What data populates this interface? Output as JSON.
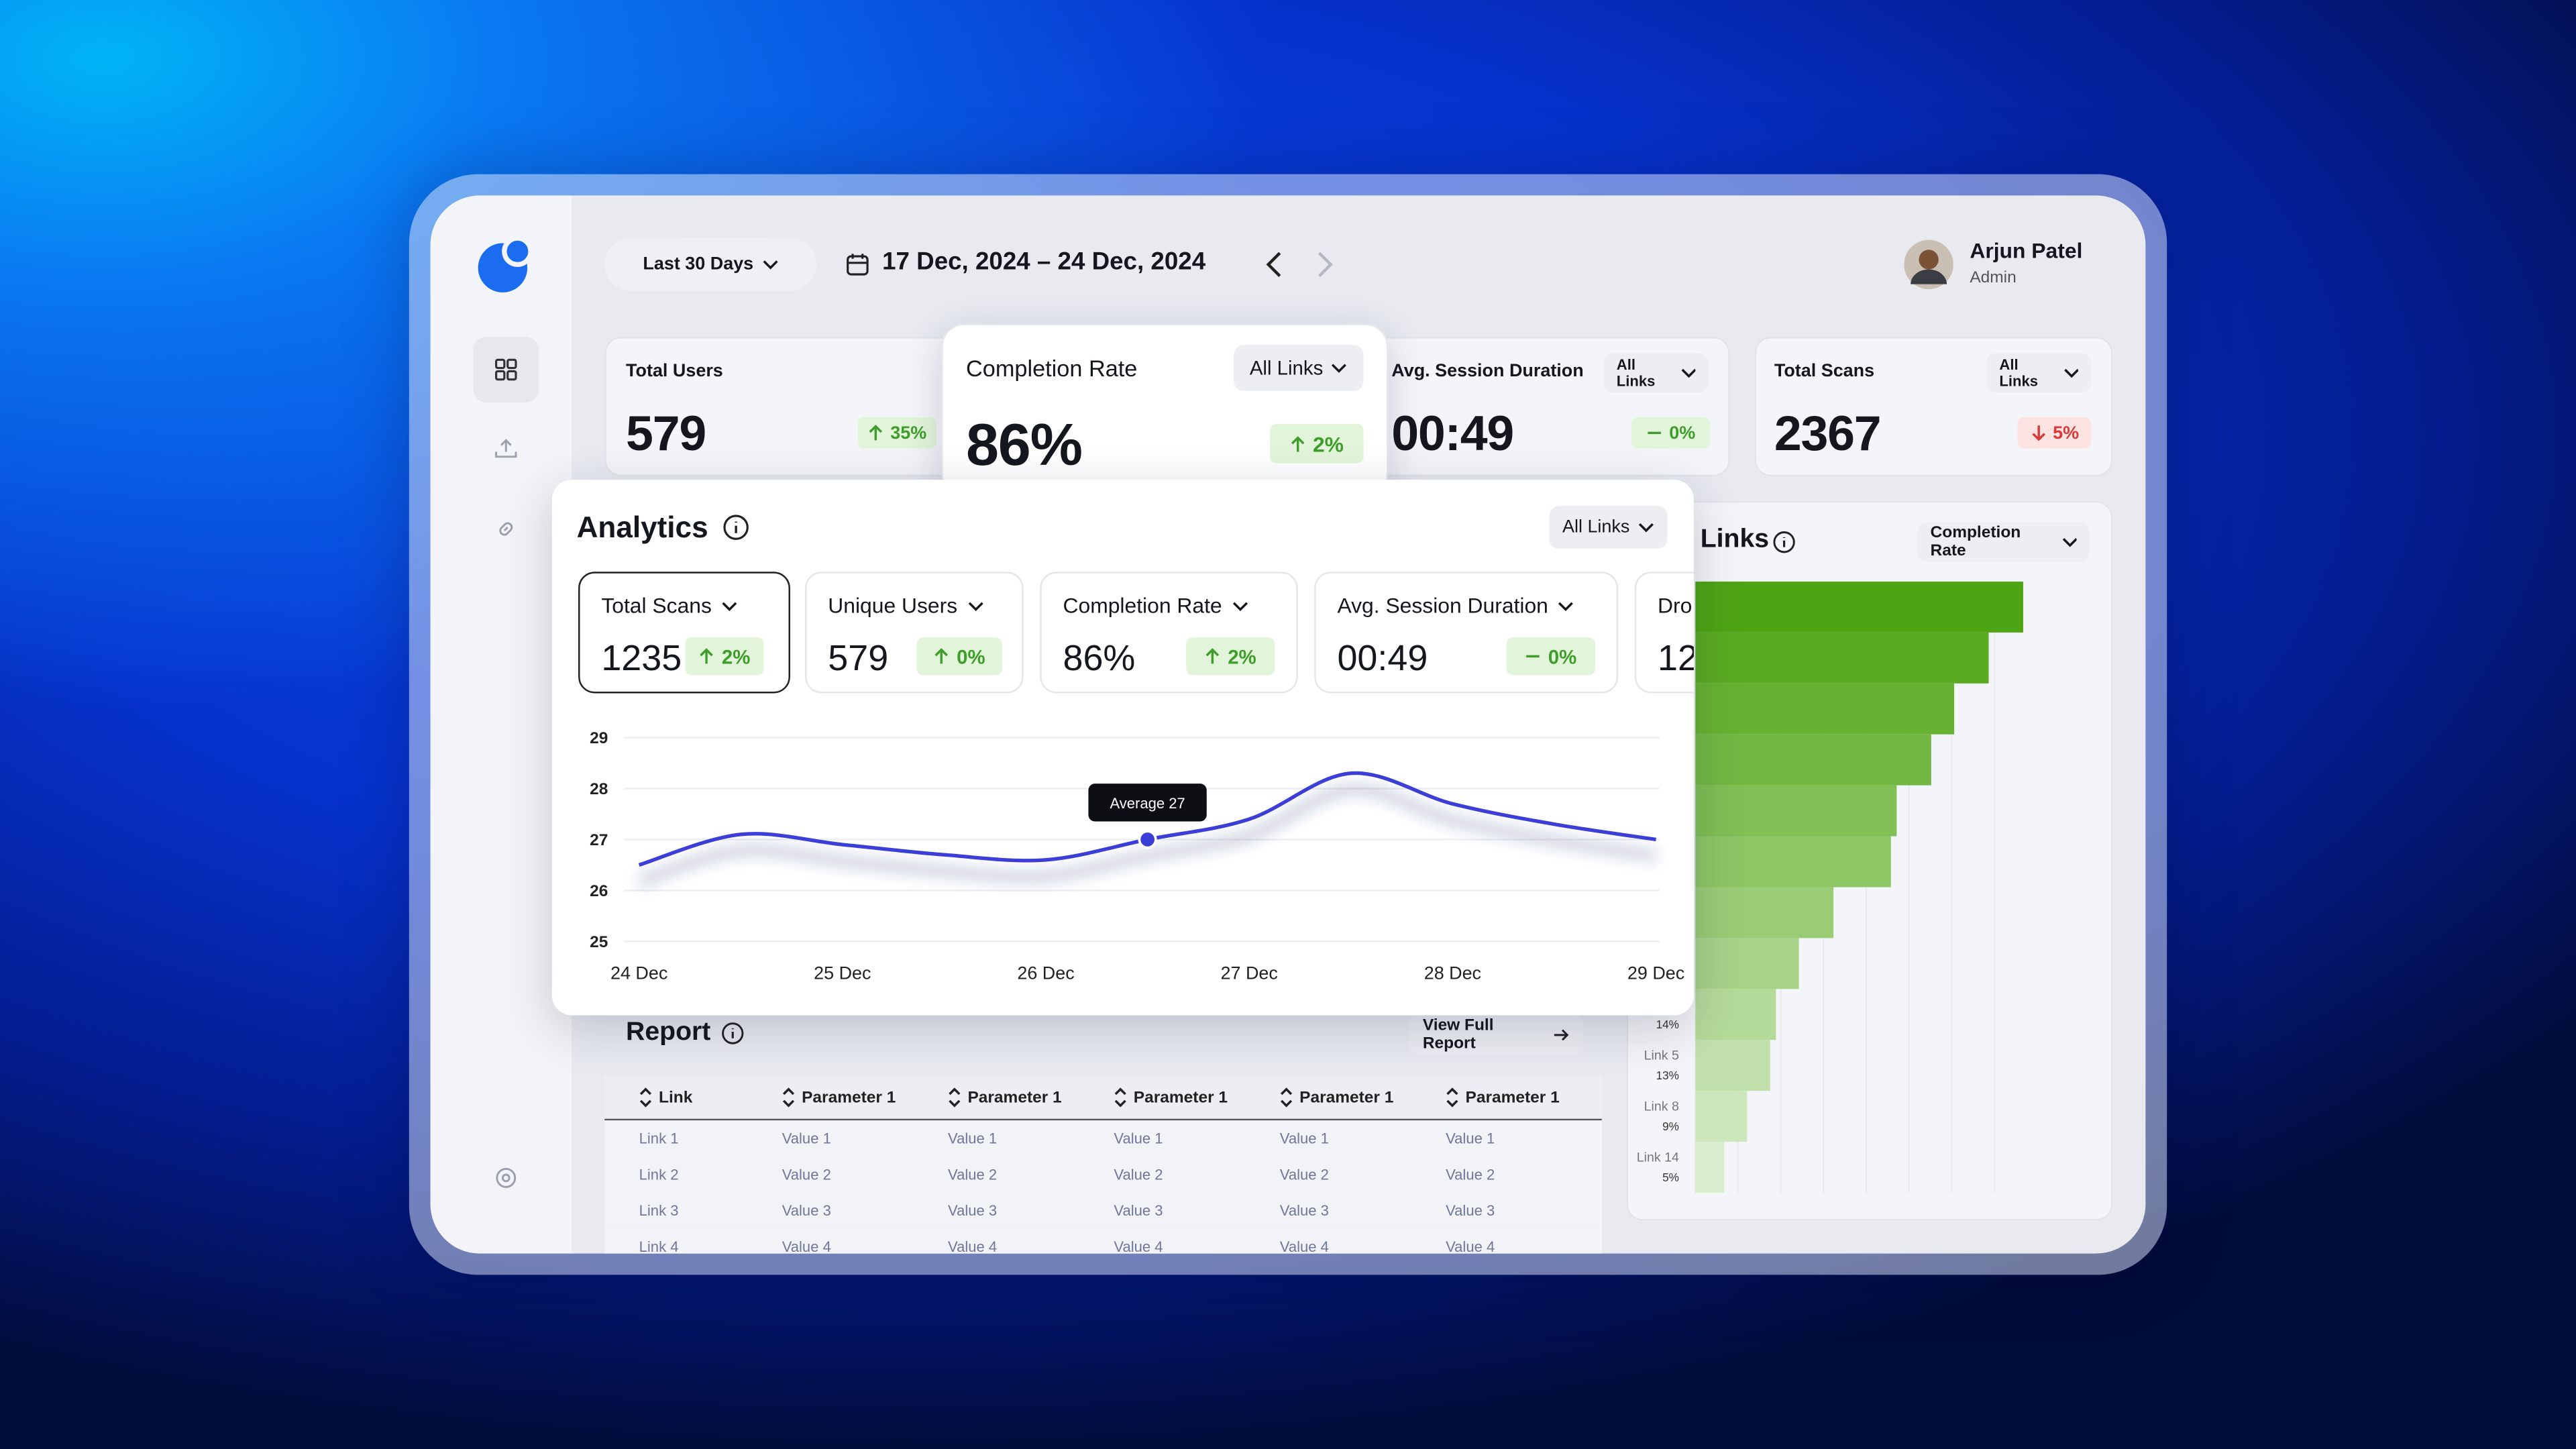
{
  "header": {
    "range": "Last 30 Days",
    "date_range": "17 Dec, 2024 – 24 Dec, 2024",
    "user": {
      "name": "Arjun Patel",
      "role": "Admin"
    }
  },
  "kpis": [
    {
      "title": "Total Users",
      "value": "579",
      "change": "35%",
      "trend": "up"
    },
    {
      "title": "Completion Rate",
      "filter": "All Links",
      "value": "86%",
      "change": "2%",
      "trend": "up"
    },
    {
      "title": "Avg. Session Duration",
      "filter": "All Links",
      "value": "00:49",
      "change": "0%",
      "trend": "flat"
    },
    {
      "title": "Total Scans",
      "filter": "All Links",
      "value": "2367",
      "change": "5%",
      "trend": "down"
    }
  ],
  "analytics": {
    "title": "Analytics",
    "filter": "All Links",
    "metrics": [
      {
        "title": "Total Scans",
        "value": "1235",
        "change": "2%",
        "trend": "up"
      },
      {
        "title": "Unique Users",
        "value": "579",
        "change": "0%",
        "trend": "up"
      },
      {
        "title": "Completion Rate",
        "value": "86%",
        "change": "2%",
        "trend": "up"
      },
      {
        "title": "Avg. Session Duration",
        "value": "00:49",
        "change": "0%",
        "trend": "flat"
      },
      {
        "title": "Dro",
        "value": "12"
      }
    ]
  },
  "links_panel": {
    "filter": "Completion Rate"
  },
  "chart_data": [
    {
      "type": "line",
      "categories": [
        "24 Dec",
        null,
        "25 Dec",
        null,
        "26 Dec",
        null,
        "27 Dec",
        null,
        "28 Dec",
        null,
        "29 Dec"
      ],
      "values": [
        26.5,
        27.1,
        26.9,
        26.7,
        26.6,
        27,
        27.4,
        28.3,
        27.7,
        27.3,
        27
      ],
      "color": "#3b3fd8",
      "ylim": [
        25,
        29
      ],
      "yticks": [
        25,
        26,
        27,
        28,
        29
      ],
      "grid": true,
      "annotations": [
        "Average 27"
      ]
    },
    {
      "type": "bar",
      "orientation": "horizontal",
      "title": "Links",
      "categories": [
        null,
        null,
        null,
        null,
        null,
        null,
        null,
        null,
        null,
        "Link 5",
        "Link 8",
        "Link 14"
      ],
      "values": [
        57,
        51,
        45,
        41,
        35,
        34,
        24,
        18,
        14,
        13,
        9,
        5
      ],
      "value_labels": [
        null,
        null,
        null,
        null,
        null,
        null,
        null,
        null,
        "14%",
        "13%",
        "9%",
        "5%"
      ],
      "xlim": [
        0,
        60
      ],
      "colors": [
        "#4ea514",
        "#5aab22",
        "#67b232",
        "#73b843",
        "#80bf54",
        "#8dc665",
        "#9acc76",
        "#a7d388",
        "#b4da99",
        "#c1e0ab",
        "#cde6bc",
        "#daedce"
      ]
    }
  ],
  "report": {
    "title": "Report",
    "link": "View Full Report",
    "columns": [
      "Link",
      "Parameter 1",
      "Parameter 1",
      "Parameter 1",
      "Parameter 1",
      "Parameter 1"
    ],
    "rows": [
      [
        "Link 1",
        "Value 1",
        "Value 1",
        "Value 1",
        "Value 1",
        "Value 1"
      ],
      [
        "Link 2",
        "Value 2",
        "Value 2",
        "Value 2",
        "Value 2",
        "Value 2"
      ],
      [
        "Link 3",
        "Value 3",
        "Value 3",
        "Value 3",
        "Value 3",
        "Value 3"
      ],
      [
        "Link 4",
        "Value 4",
        "Value 4",
        "Value 4",
        "Value 4",
        "Value 4"
      ]
    ]
  }
}
